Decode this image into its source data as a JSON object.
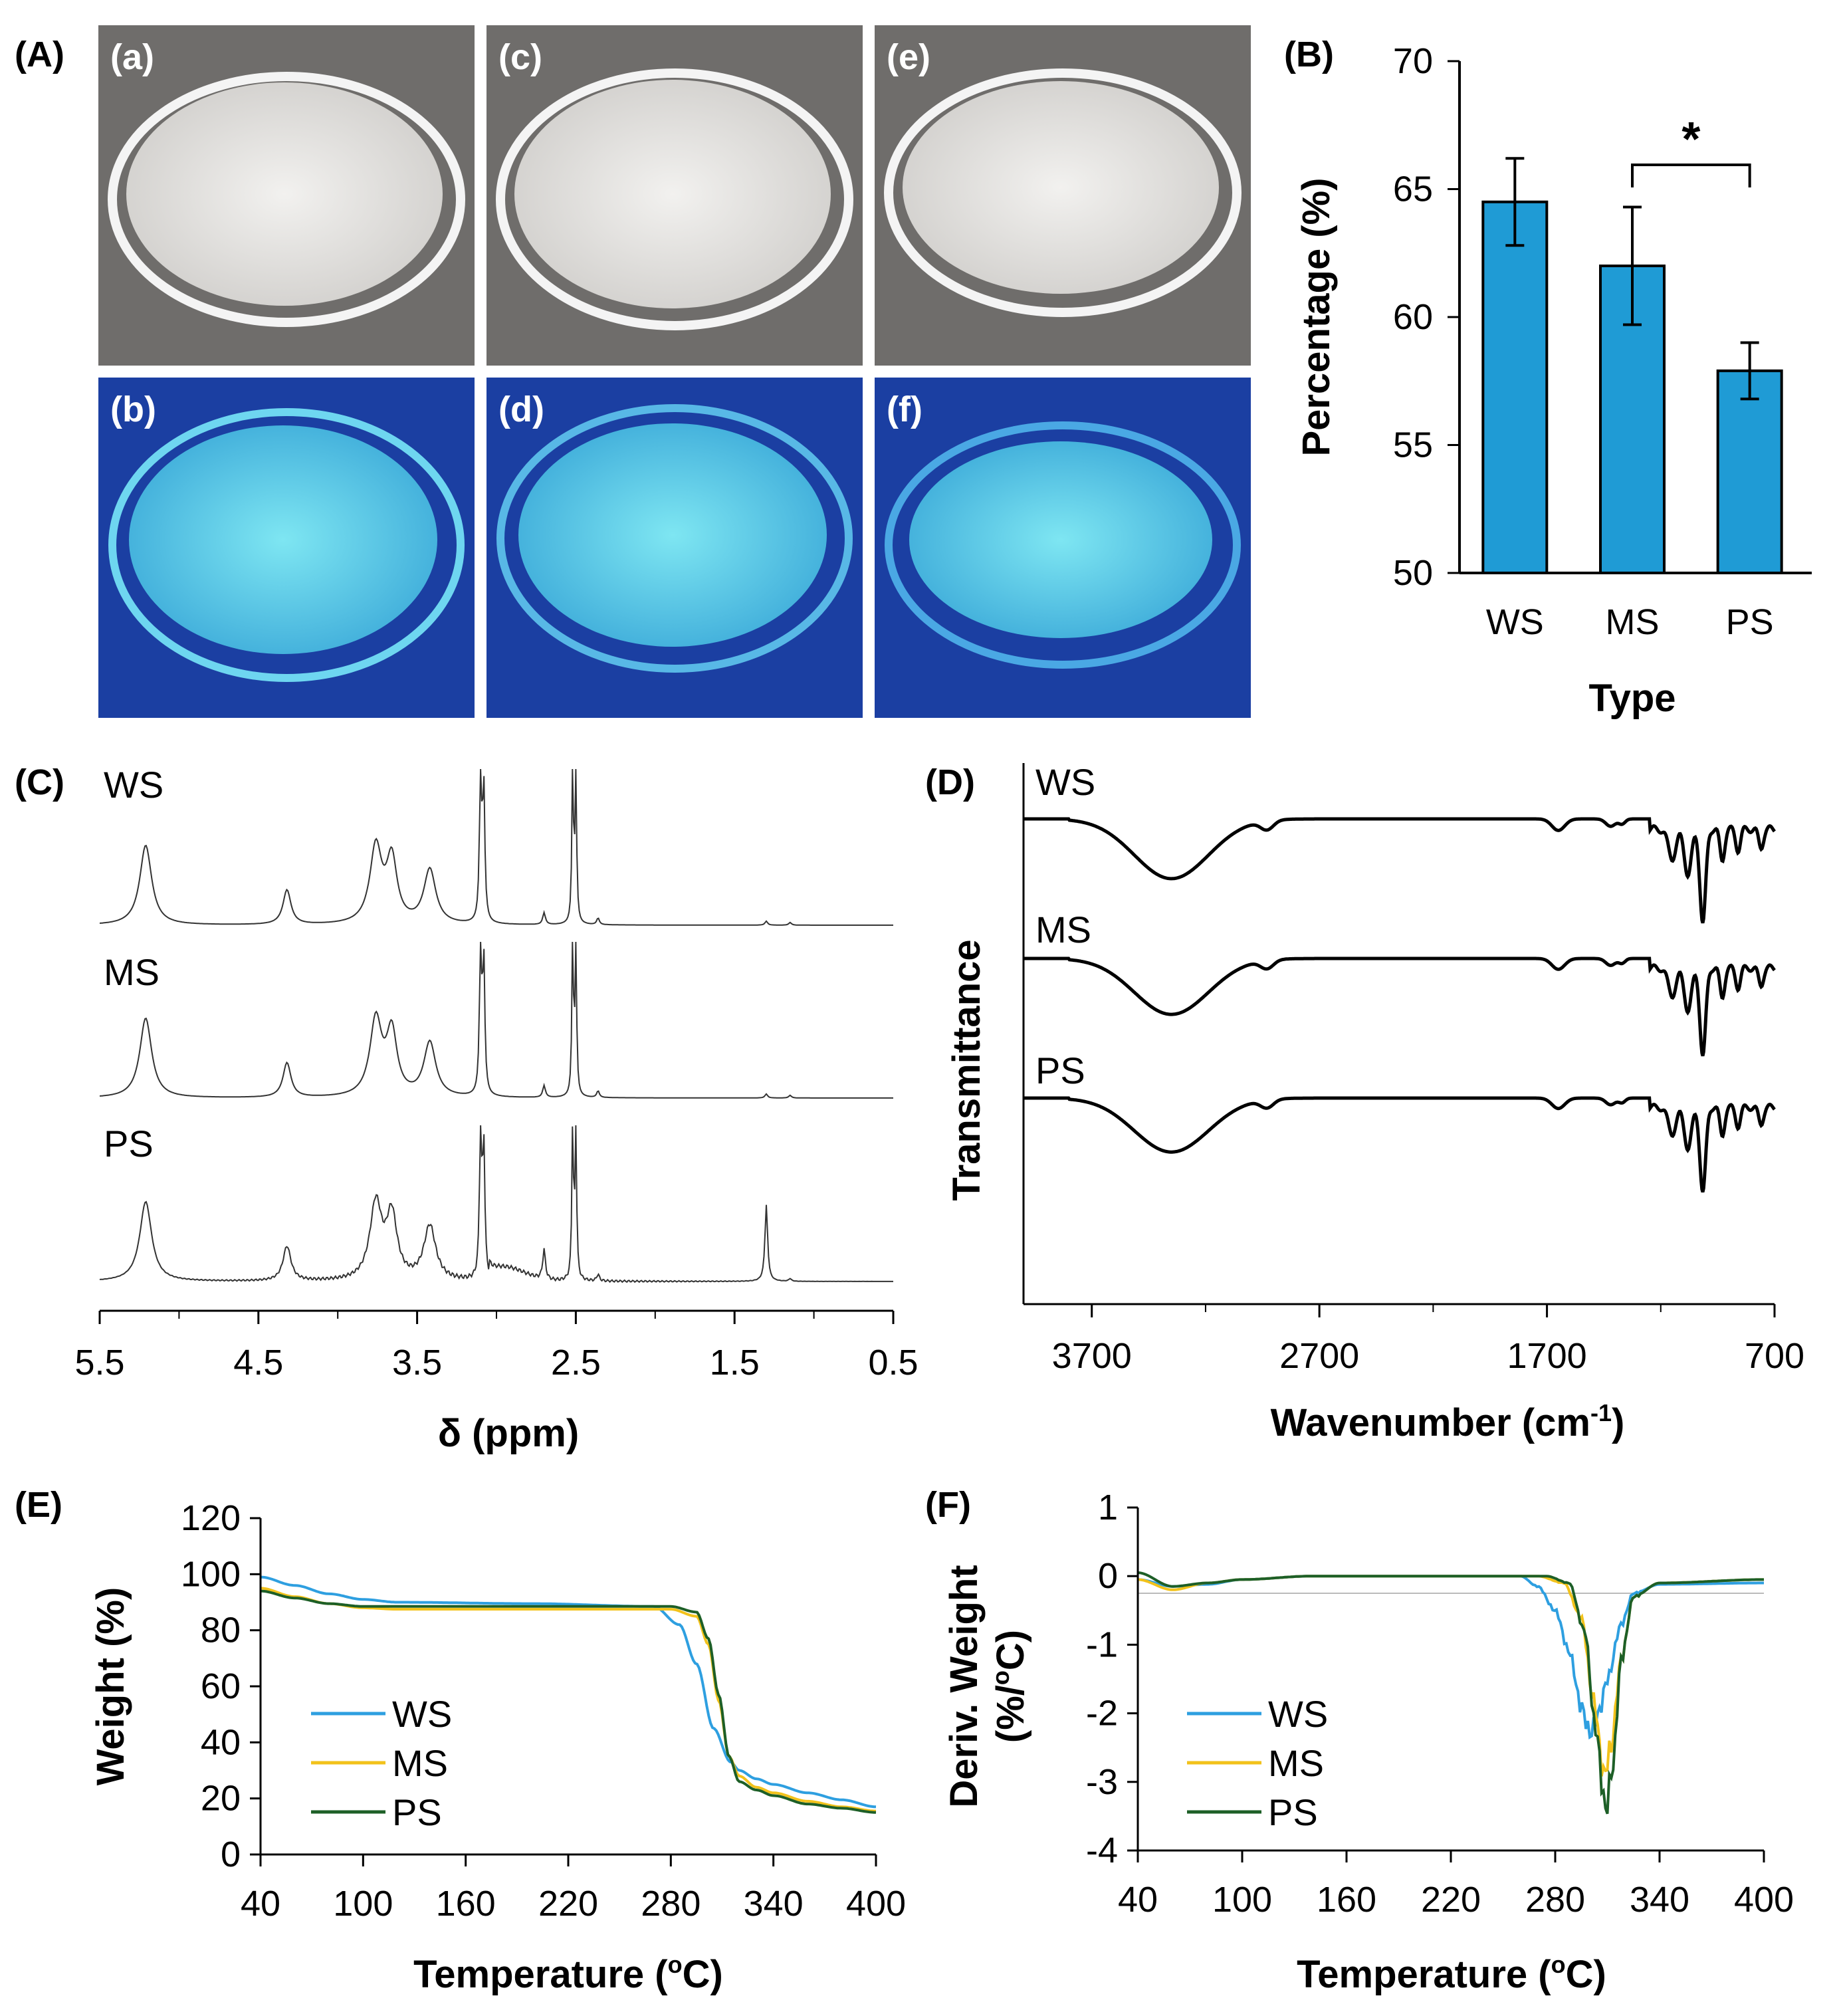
{
  "panel_labels": {
    "A": "(A)",
    "B": "(B)",
    "C": "(C)",
    "D": "(D)",
    "E": "(E)",
    "F": "(F)"
  },
  "photos": [
    {
      "label": "(a)",
      "light": "white",
      "bg": "#6f6d6b",
      "fill": "#e4e2df"
    },
    {
      "label": "(c)",
      "light": "white",
      "bg": "#6f6d6b",
      "fill": "#e4e2df"
    },
    {
      "label": "(e)",
      "light": "white",
      "bg": "#6f6d6b",
      "fill": "#e8e6e3"
    },
    {
      "label": "(b)",
      "light": "uv",
      "bg": "#1b3fa2",
      "fill": "#55d8ea"
    },
    {
      "label": "(d)",
      "light": "uv",
      "bg": "#1b3fa2",
      "fill": "#4fcbe0"
    },
    {
      "label": "(f)",
      "light": "uv",
      "bg": "#1b3fa2",
      "fill": "#47bfe0"
    }
  ],
  "colors": {
    "bar": "#1f9bd5",
    "ws": "#2e9fe0",
    "ms": "#f2c21b",
    "ps": "#1d5f27"
  },
  "chart_data": [
    {
      "id": "B",
      "type": "bar",
      "title": "",
      "categories": [
        "WS",
        "MS",
        "PS"
      ],
      "values": [
        64.5,
        62.0,
        57.9
      ],
      "errors": [
        1.7,
        2.3,
        1.1
      ],
      "ylim": [
        50,
        70
      ],
      "yticks": [
        50,
        55,
        60,
        65,
        70
      ],
      "xlabel": "Type",
      "ylabel": "Percentage (%)",
      "significance": {
        "between": [
          "MS",
          "PS"
        ],
        "label": "*"
      }
    },
    {
      "id": "C",
      "type": "line",
      "title": "",
      "xlabel": "δ (ppm)",
      "ylabel": "",
      "xlim": [
        5.5,
        0.5
      ],
      "xticks": [
        "5.5",
        "4.5",
        "3.5",
        "2.5",
        "1.5",
        "0.5"
      ],
      "series_names": [
        "WS",
        "MS",
        "PS"
      ],
      "peaks_ppm": [
        5.2,
        4.32,
        3.75,
        3.65,
        3.42,
        3.1,
        2.52,
        2.7,
        1.3
      ]
    },
    {
      "id": "D",
      "type": "line",
      "title": "",
      "xlabel": "Wavenumber (cm",
      "xlabel_sup": "-1",
      "xlabel_close": ")",
      "ylabel": "Transmittance",
      "xlim": [
        4000,
        700
      ],
      "xticks": [
        "3700",
        "2700",
        "1700",
        "700"
      ],
      "series_names": [
        "WS",
        "MS",
        "PS"
      ],
      "bands_cm1": [
        3350,
        2930,
        1650,
        1150,
        1080,
        1015,
        930,
        860,
        760
      ]
    },
    {
      "id": "E",
      "type": "line",
      "title": "",
      "xlabel": "Temperature (",
      "xlabel_sup": "o",
      "xlabel_close": "C)",
      "ylabel": "Weight (%)",
      "xlim": [
        40,
        400
      ],
      "ylim": [
        0,
        120
      ],
      "xticks": [
        "40",
        "100",
        "160",
        "220",
        "280",
        "340",
        "400"
      ],
      "yticks": [
        "0",
        "20",
        "40",
        "60",
        "80",
        "100",
        "120"
      ],
      "legend": [
        "WS",
        "MS",
        "PS"
      ],
      "series": [
        {
          "name": "WS",
          "x": [
            40,
            60,
            80,
            100,
            120,
            200,
            270,
            285,
            295,
            305,
            315,
            320,
            330,
            340,
            360,
            380,
            400
          ],
          "y": [
            99,
            96,
            93,
            91,
            90,
            89.5,
            88.5,
            82,
            68,
            45,
            33,
            30,
            27,
            25,
            22,
            19.5,
            17
          ]
        },
        {
          "name": "MS",
          "x": [
            40,
            60,
            80,
            100,
            120,
            200,
            280,
            295,
            302,
            308,
            314,
            320,
            330,
            340,
            360,
            380,
            400
          ],
          "y": [
            95,
            92,
            89.5,
            88,
            87.5,
            87.5,
            87.5,
            85,
            75,
            55,
            35,
            28,
            24,
            22,
            19,
            17,
            15.5
          ]
        },
        {
          "name": "PS",
          "x": [
            40,
            60,
            80,
            100,
            120,
            200,
            280,
            295,
            302,
            308,
            314,
            320,
            330,
            340,
            360,
            380,
            400
          ],
          "y": [
            94,
            91.5,
            89.5,
            88.5,
            88.5,
            88.5,
            88.5,
            86.5,
            77,
            57,
            35,
            26,
            23,
            21,
            18,
            16.5,
            15
          ]
        }
      ]
    },
    {
      "id": "F",
      "type": "line",
      "title": "",
      "xlabel": "Temperature (",
      "xlabel_sup": "o",
      "xlabel_close": "C)",
      "ylabel": "Deriv. Weight",
      "ylabel2": "(%/",
      "ylabel2_sup": "o",
      "ylabel2_close": "C)",
      "xlim": [
        40,
        400
      ],
      "ylim": [
        -4,
        1
      ],
      "xticks": [
        "40",
        "100",
        "160",
        "220",
        "280",
        "340",
        "400"
      ],
      "yticks": [
        "-4",
        "-3",
        "-2",
        "-1",
        "0",
        "1"
      ],
      "legend": [
        "WS",
        "MS",
        "PS"
      ],
      "series": [
        {
          "name": "WS",
          "x": [
            40,
            60,
            80,
            100,
            140,
            200,
            260,
            270,
            280,
            288,
            295,
            300,
            305,
            310,
            318,
            325,
            340,
            400
          ],
          "y": [
            -0.05,
            -0.15,
            -0.12,
            -0.05,
            0,
            0,
            0,
            -0.15,
            -0.5,
            -1.1,
            -1.9,
            -2.3,
            -2.0,
            -1.5,
            -0.7,
            -0.25,
            -0.12,
            -0.1
          ]
        },
        {
          "name": "MS",
          "x": [
            40,
            60,
            80,
            100,
            140,
            200,
            270,
            285,
            295,
            302,
            308,
            312,
            318,
            325,
            340,
            400
          ],
          "y": [
            -0.05,
            -0.2,
            -0.1,
            -0.05,
            0,
            0,
            0,
            -0.1,
            -0.6,
            -1.8,
            -2.9,
            -2.5,
            -1.2,
            -0.3,
            -0.1,
            -0.05
          ]
        },
        {
          "name": "PS",
          "x": [
            40,
            60,
            80,
            100,
            140,
            200,
            275,
            288,
            297,
            303,
            309,
            313,
            318,
            325,
            340,
            400
          ],
          "y": [
            0.05,
            -0.15,
            -0.1,
            -0.05,
            0,
            0,
            0,
            -0.1,
            -0.8,
            -2.2,
            -3.4,
            -2.8,
            -1.2,
            -0.3,
            -0.1,
            -0.05
          ]
        }
      ]
    }
  ]
}
